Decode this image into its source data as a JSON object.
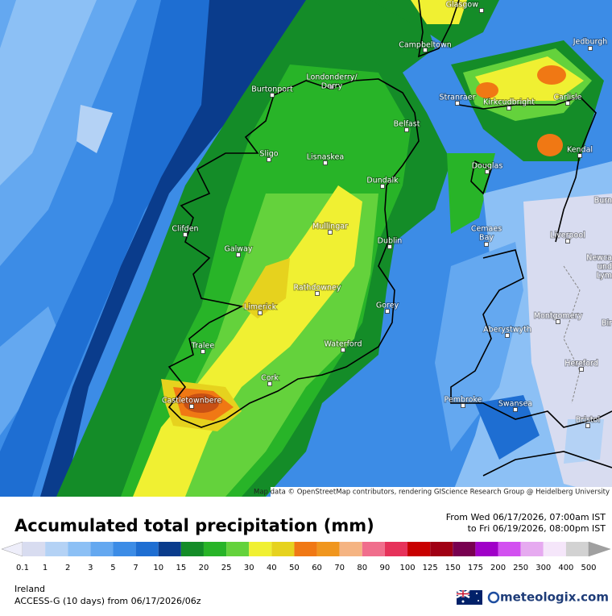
{
  "map": {
    "cities": [
      {
        "label": [
          "Glasgow"
        ]
      },
      {
        "label": [
          "Campbeltown"
        ]
      },
      {
        "label": [
          "Jedburgh"
        ]
      },
      {
        "label": [
          "Londonderry/",
          "Derry"
        ]
      },
      {
        "label": [
          "Burtonport"
        ]
      },
      {
        "label": [
          "Stranraer"
        ]
      },
      {
        "label": [
          "Kirkcudbright"
        ]
      },
      {
        "label": [
          "Carlisle"
        ]
      },
      {
        "label": [
          "Belfast"
        ]
      },
      {
        "label": [
          "Sligo"
        ]
      },
      {
        "label": [
          "Lisnaskea"
        ]
      },
      {
        "label": [
          "Douglas"
        ]
      },
      {
        "label": [
          "Kendal"
        ]
      },
      {
        "label": [
          "Dundalk"
        ]
      },
      {
        "label": [
          "Burn"
        ]
      },
      {
        "label": [
          "Clifden"
        ]
      },
      {
        "label": [
          "Mullingar"
        ]
      },
      {
        "label": [
          "Cemaes",
          "Bay"
        ]
      },
      {
        "label": [
          "Liverpool"
        ]
      },
      {
        "label": [
          "Galway"
        ]
      },
      {
        "label": [
          "Dublin"
        ]
      },
      {
        "label": [
          "Newca",
          "und",
          "Lym"
        ]
      },
      {
        "label": [
          "Rathdowney"
        ]
      },
      {
        "label": [
          "Limerick"
        ]
      },
      {
        "label": [
          "Gorey"
        ]
      },
      {
        "label": [
          "Montgomery"
        ]
      },
      {
        "label": [
          "Aberystwyth"
        ]
      },
      {
        "label": [
          "Bir"
        ]
      },
      {
        "label": [
          "Tralee"
        ]
      },
      {
        "label": [
          "Waterford"
        ]
      },
      {
        "label": [
          "Hereford"
        ]
      },
      {
        "label": [
          "Cork"
        ]
      },
      {
        "label": [
          "Castletownbere"
        ]
      },
      {
        "label": [
          "Pembroke"
        ]
      },
      {
        "label": [
          "Swansea"
        ]
      },
      {
        "label": [
          "Bristol"
        ]
      }
    ],
    "attribution": "Map data © OpenStreetMap contributors, rendering GIScience Research Group @ Heidelberg University"
  },
  "legend": {
    "title": "Accumulated total precipitation (mm)",
    "period": [
      "From Wed 06/17/2026, 07:00am IST",
      "to Fri 06/19/2026, 08:00pm IST"
    ],
    "labels": [
      0.1,
      1,
      2,
      3,
      5,
      7,
      10,
      15,
      20,
      25,
      30,
      40,
      50,
      60,
      70,
      80,
      90,
      100,
      125,
      150,
      175,
      200,
      250,
      300,
      400,
      500
    ],
    "colors": [
      "#eeeefa",
      "#d8dcf0",
      "#b4d2f5",
      "#8cc0f5",
      "#64a8f0",
      "#3c8ce6",
      "#1e6ed2",
      "#0a3c8c",
      "#148c28",
      "#28b428",
      "#64d23c",
      "#f0f032",
      "#e6d21e",
      "#f07814",
      "#f0961e",
      "#f5b482",
      "#f06e8c",
      "#e6325a",
      "#c80000",
      "#a00014",
      "#780050",
      "#a000c8",
      "#d250f0",
      "#e6aaf0",
      "#f5e6fa",
      "#d2d2d2",
      "#a0a0a0"
    ]
  },
  "footer": {
    "region": "Ireland",
    "model": "ACCESS-G (10 days) from 06/17/2026/06z",
    "brand": "meteologix.com"
  }
}
